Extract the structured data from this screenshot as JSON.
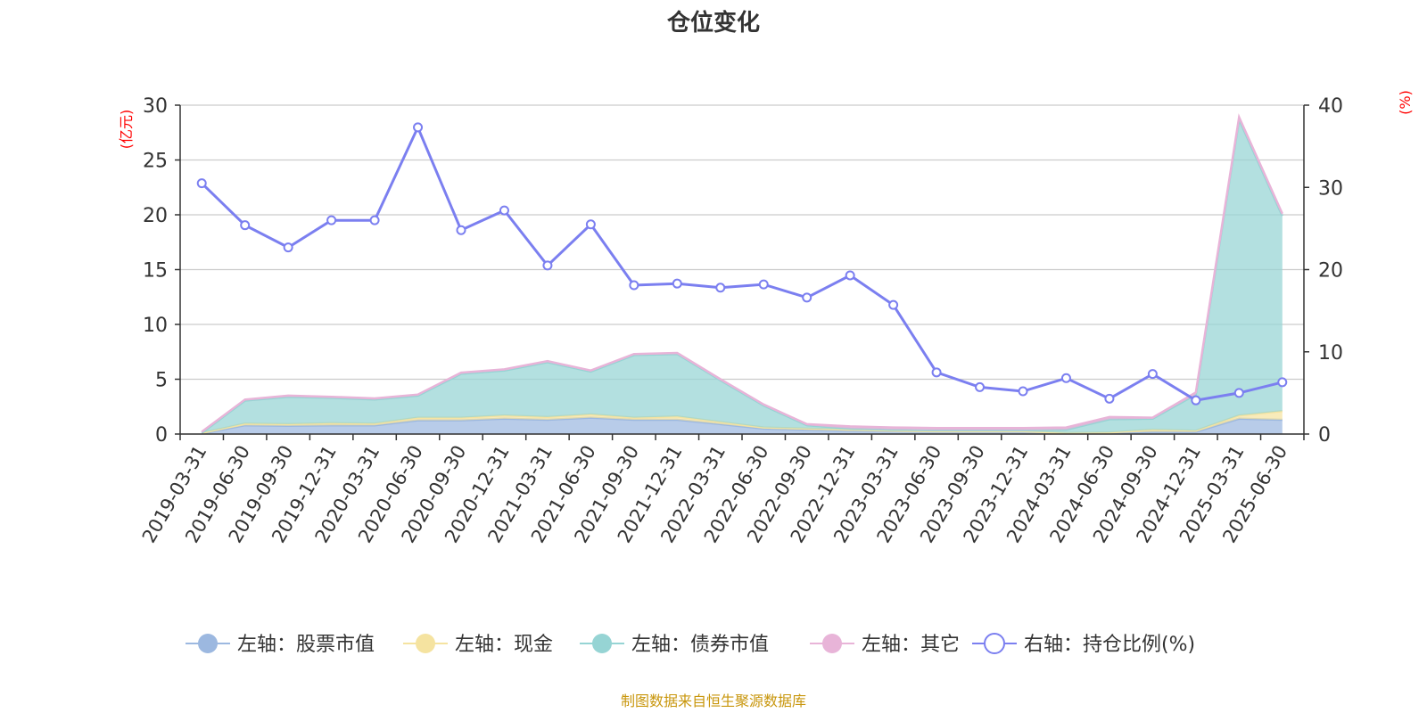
{
  "chart_data": {
    "type": "area",
    "title": "仓位变化",
    "left_axis": {
      "label": "(亿元)",
      "ylim": [
        0,
        30
      ],
      "ticks": [
        "0",
        "5",
        "10",
        "15",
        "20",
        "25",
        "30"
      ],
      "label_color": "#ff0000"
    },
    "right_axis": {
      "label": "(%)",
      "ylim": [
        0,
        40
      ],
      "ticks": [
        "0",
        "10",
        "20",
        "30",
        "40"
      ],
      "label_color": "#ff0000"
    },
    "categories": [
      "2019-03-31",
      "2019-06-30",
      "2019-09-30",
      "2019-12-31",
      "2020-03-31",
      "2020-06-30",
      "2020-09-30",
      "2020-12-31",
      "2021-03-31",
      "2021-06-30",
      "2021-09-30",
      "2021-12-31",
      "2022-03-31",
      "2022-06-30",
      "2022-09-30",
      "2022-12-31",
      "2023-03-31",
      "2023-06-30",
      "2023-09-30",
      "2023-12-31",
      "2024-03-31",
      "2024-06-30",
      "2024-09-30",
      "2024-12-31",
      "2025-03-31",
      "2025-06-30"
    ],
    "series": [
      {
        "name": "左轴：股票市值",
        "axis": "left",
        "color": "#9cb8e0",
        "values": [
          0.05,
          0.8,
          0.75,
          0.8,
          0.8,
          1.25,
          1.25,
          1.4,
          1.3,
          1.5,
          1.3,
          1.3,
          0.9,
          0.5,
          0.4,
          0.3,
          0.25,
          0.2,
          0.2,
          0.2,
          0.1,
          0.1,
          0.2,
          0.2,
          1.4,
          1.3
        ]
      },
      {
        "name": "左轴：现金",
        "axis": "left",
        "color": "#f5e3a0",
        "values": [
          0.05,
          0.15,
          0.15,
          0.2,
          0.15,
          0.25,
          0.25,
          0.3,
          0.25,
          0.3,
          0.2,
          0.3,
          0.2,
          0.1,
          0.1,
          0.1,
          0.05,
          0.05,
          0.05,
          0.05,
          0.0,
          0.05,
          0.2,
          0.1,
          0.3,
          0.8
        ]
      },
      {
        "name": "左轴：债券市值",
        "axis": "left",
        "color": "#96d4d4",
        "values": [
          0.0,
          2.1,
          2.5,
          2.3,
          2.2,
          2.0,
          4.0,
          4.1,
          5.0,
          3.9,
          5.7,
          5.7,
          3.8,
          2.0,
          0.3,
          0.1,
          0.1,
          0.1,
          0.1,
          0.1,
          0.3,
          1.2,
          1.0,
          3.3,
          27.0,
          17.8
        ]
      },
      {
        "name": "左轴：其它",
        "axis": "left",
        "color": "#e8b4d8",
        "values": [
          0.1,
          0.1,
          0.1,
          0.1,
          0.1,
          0.1,
          0.1,
          0.1,
          0.1,
          0.1,
          0.1,
          0.1,
          0.1,
          0.1,
          0.1,
          0.2,
          0.2,
          0.2,
          0.2,
          0.2,
          0.2,
          0.2,
          0.1,
          0.2,
          0.2,
          0.2
        ]
      },
      {
        "name": "右轴：持仓比例(%)",
        "axis": "right",
        "color": "#7b7ff0",
        "values": [
          30.5,
          25.4,
          22.7,
          26.0,
          26.0,
          37.3,
          24.8,
          27.2,
          20.5,
          25.5,
          18.1,
          18.3,
          17.8,
          18.2,
          16.6,
          19.3,
          15.7,
          7.5,
          5.7,
          5.2,
          6.8,
          4.3,
          7.3,
          4.1,
          5.0,
          6.3
        ]
      }
    ],
    "grid": true,
    "legend_position": "bottom"
  },
  "footer": {
    "source_text": "制图数据来自恒生聚源数据库",
    "source_color": "#c8960c"
  }
}
